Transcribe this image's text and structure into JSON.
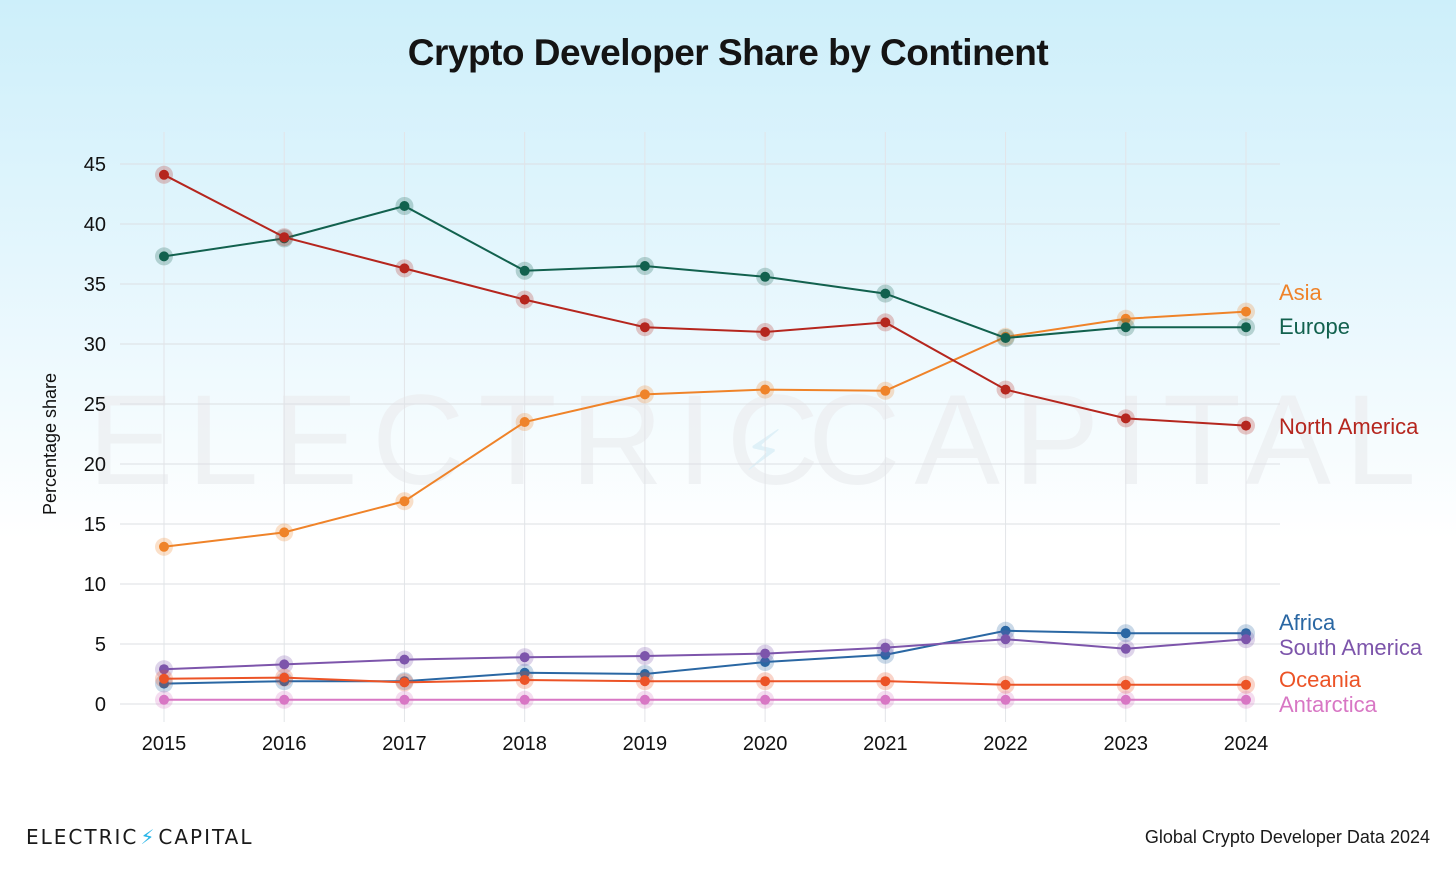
{
  "title": "Crypto Developer Share by Continent",
  "footer": {
    "logo_left": "ELECTRIC",
    "logo_right": "CAPITAL",
    "source": "Global Crypto Developer Data 2024"
  },
  "watermark": {
    "left": "ELECTRIC",
    "right": "CAPITAL"
  },
  "colors": {
    "Asia": "#ef8329",
    "Europe": "#12614e",
    "North America": "#b5261e",
    "Africa": "#2a67a3",
    "South America": "#7d55ab",
    "Oceania": "#ec5326",
    "Antarctica": "#d877c4"
  },
  "chart_data": {
    "type": "line",
    "title": "Crypto Developer Share by Continent",
    "xlabel": "",
    "ylabel": "Percentage share",
    "x": [
      "2015",
      "2016",
      "2017",
      "2018",
      "2019",
      "2020",
      "2021",
      "2022",
      "2023",
      "2024"
    ],
    "ylim": [
      0,
      45
    ],
    "yticks": [
      0,
      5,
      10,
      15,
      20,
      25,
      30,
      35,
      40,
      45
    ],
    "grid": true,
    "legend": "right-end labels",
    "series": [
      {
        "name": "Asia",
        "values": [
          13.1,
          14.3,
          16.9,
          23.5,
          25.8,
          26.2,
          26.1,
          30.6,
          32.1,
          32.7
        ]
      },
      {
        "name": "Europe",
        "values": [
          37.3,
          38.8,
          41.5,
          36.1,
          36.5,
          35.6,
          34.2,
          30.5,
          31.4,
          31.4
        ]
      },
      {
        "name": "North America",
        "values": [
          44.1,
          38.9,
          36.3,
          33.7,
          31.4,
          31.0,
          31.8,
          26.2,
          23.8,
          23.2
        ]
      },
      {
        "name": "Africa",
        "values": [
          1.7,
          1.9,
          1.9,
          2.6,
          2.5,
          3.5,
          4.1,
          6.1,
          5.9,
          5.9
        ]
      },
      {
        "name": "South America",
        "values": [
          2.9,
          3.3,
          3.7,
          3.9,
          4.0,
          4.2,
          4.7,
          5.4,
          4.6,
          5.4
        ]
      },
      {
        "name": "Oceania",
        "values": [
          2.1,
          2.2,
          1.8,
          2.0,
          1.9,
          1.9,
          1.9,
          1.6,
          1.6,
          1.6
        ]
      },
      {
        "name": "Antarctica",
        "values": [
          0.35,
          0.35,
          0.35,
          0.35,
          0.35,
          0.35,
          0.35,
          0.35,
          0.35,
          0.35
        ]
      }
    ]
  }
}
